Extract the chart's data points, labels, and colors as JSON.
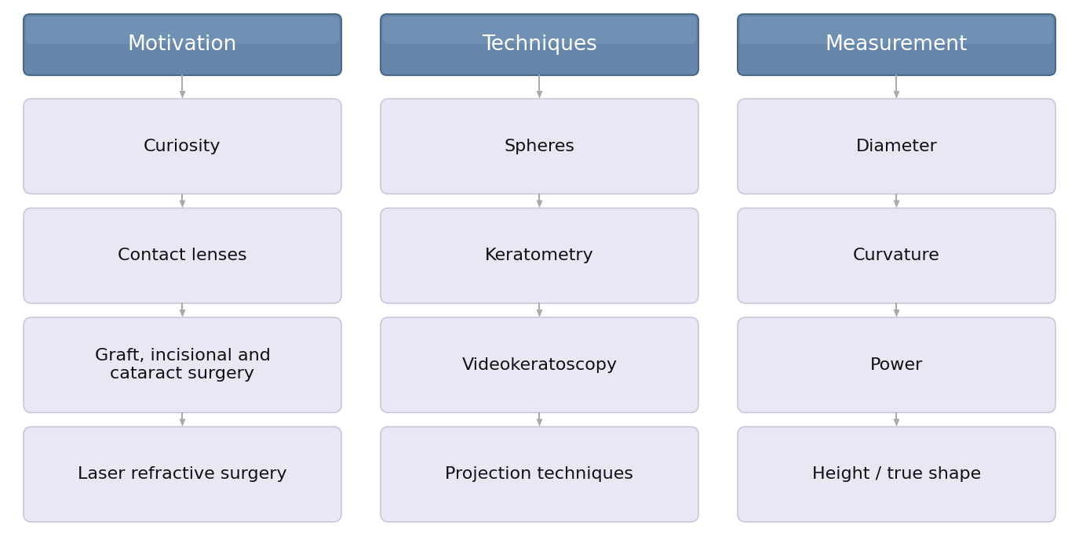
{
  "columns": [
    {
      "header": "Motivation",
      "items": [
        "Curiosity",
        "Contact lenses",
        "Graft, incisional and\ncataract surgery",
        "Laser refractive surgery"
      ]
    },
    {
      "header": "Techniques",
      "items": [
        "Spheres",
        "Keratometry",
        "Videokeratoscopy",
        "Projection techniques"
      ]
    },
    {
      "header": "Measurement",
      "items": [
        "Diameter",
        "Curvature",
        "Power",
        "Height / true shape"
      ]
    }
  ],
  "header_bg_color": "#6585aa",
  "header_text_color": "#ffffff",
  "item_bg_color": "#e8e8f4",
  "item_border_color": "#c8c8dc",
  "item_text_color": "#111111",
  "arrow_color": "#aaaaaa",
  "background_color": "#ffffff",
  "header_fontsize": 19,
  "item_fontsize": 16,
  "fig_width": 13.75,
  "fig_height": 6.84
}
